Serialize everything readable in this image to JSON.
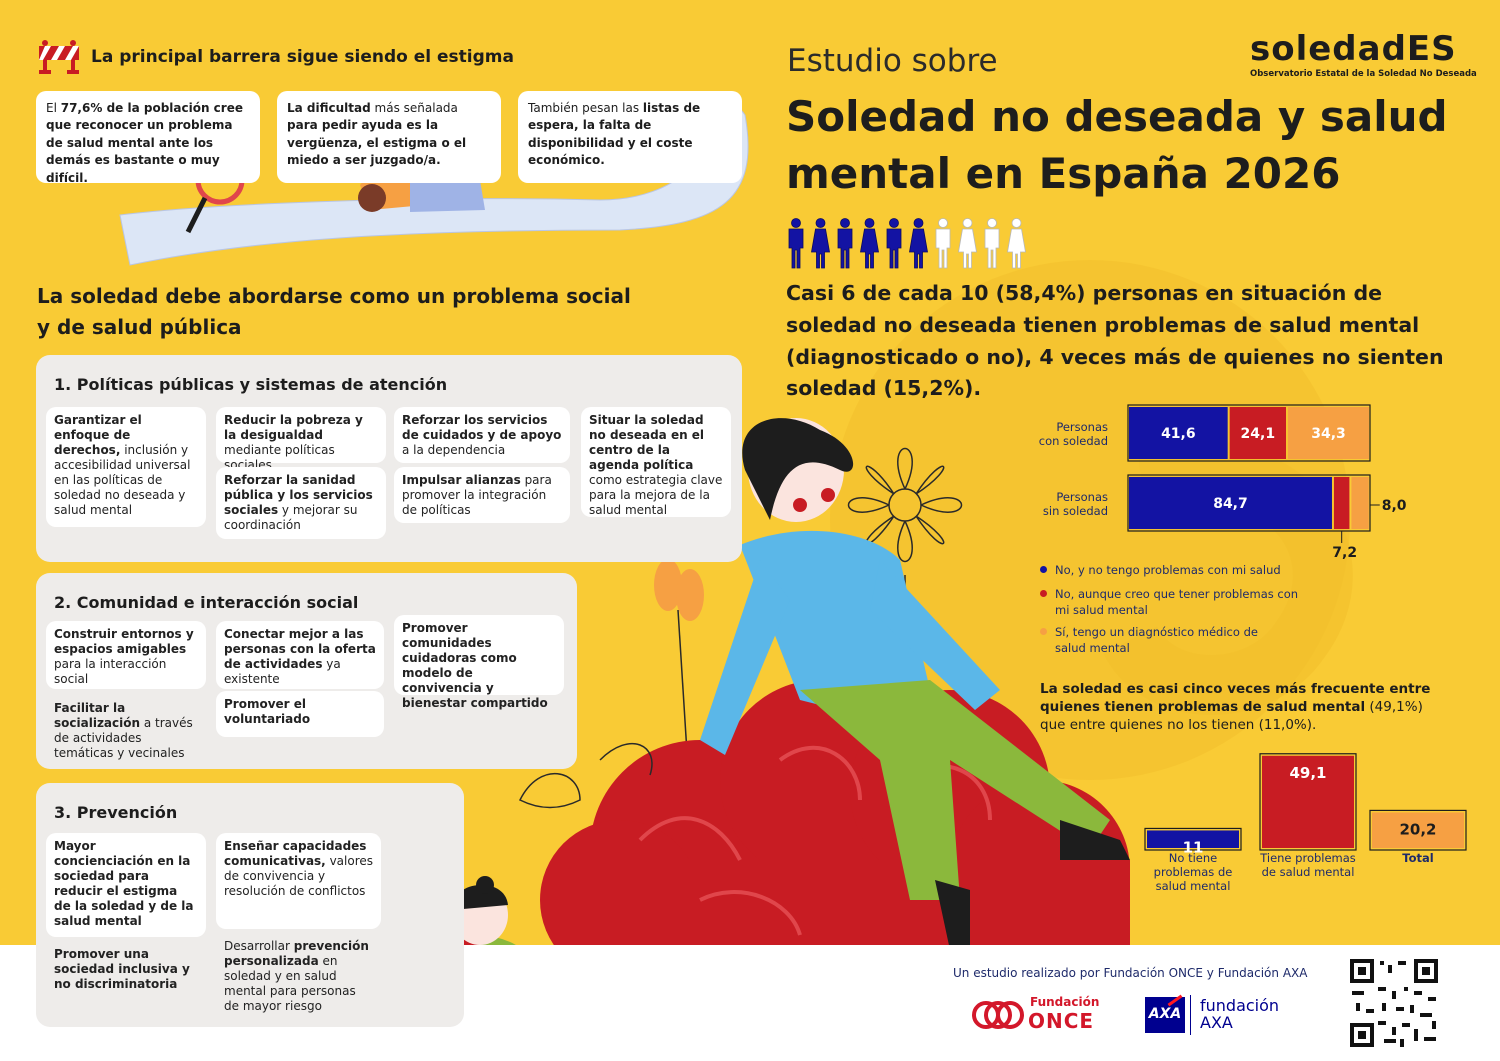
{
  "colors": {
    "background": "#F9CB35",
    "navy": "#1313A3",
    "red": "#C81C23",
    "orange": "#F6A043",
    "panel": "#EEECEA",
    "title": "#1d1d1d"
  },
  "logo": {
    "name": "soledadES",
    "subtitle": "Observatorio Estatal de la Soledad No Deseada"
  },
  "header": {
    "kicker": "Estudio sobre",
    "title_line1": "Soledad no deseada y salud",
    "title_line2": "mental en España 2026"
  },
  "pictogram": {
    "filled": 6,
    "total": 10,
    "icon": "person-icon"
  },
  "headline": {
    "line1": "Casi 6 de cada 10 (58,4%) personas en situación de",
    "line2": "soledad no deseada tienen problemas de salud mental",
    "line3": "(diagnosticado o no), 4 veces más de quienes no sienten",
    "line4": "soledad (15,2%)."
  },
  "stigma": {
    "icon": "barrier-icon",
    "title": "La principal barrera sigue siendo el estigma",
    "card1": {
      "pre": "El ",
      "b1": "77,6%",
      "mid": " de la población cree que reconocer un problema de salud mental ante los demás es bastante o muy difícil.",
      "full": "El 77,6% de la población cree que reconocer un problema de salud mental ante los demás es bastante o muy difícil."
    },
    "card2": {
      "b1": "La dificultad",
      "t1": " más señalada ",
      "b2": "para pedir ayuda es la vergüenza, el estigma o el miedo a ser juzgado/a."
    },
    "card3": {
      "t1": "También pesan las ",
      "b1": "listas de espera, la falta de disponibilidad y el coste económico."
    }
  },
  "social": {
    "line1": "La soledad debe abordarse como un problema social",
    "line2": "y de salud pública"
  },
  "panel1": {
    "title": "1. Políticas públicas y  sistemas de atención",
    "c1": {
      "b": "Garantizar el enfoque de derechos,",
      "t": " inclusión y accesibilidad universal en las políticas de soledad no deseada y salud mental"
    },
    "c2": {
      "b": "Reducir la pobreza y la desigualdad",
      "t": " mediante políticas sociales"
    },
    "c3": {
      "b": "Reforzar la sanidad pública y los servicios sociales",
      "t": " y mejorar su coordinación"
    },
    "c4": {
      "b": "Reforzar los servicios de cuidados y de apoyo",
      "t": " a la dependencia"
    },
    "c5": {
      "b": "Impulsar alianzas",
      "t": " para promover la integración de políticas"
    },
    "c6": {
      "b": "Situar la soledad no deseada en el centro de la agenda política",
      "t": " como estrategia clave para la mejora de la salud mental"
    }
  },
  "panel2": {
    "title": "2. Comunidad e interacción social",
    "c1": {
      "b": "Construir entornos y espacios amigables",
      "t": " para la interacción social"
    },
    "c2": {
      "b": "Facilitar la socialización",
      "t": " a través de actividades temáticas y vecinales"
    },
    "c3": {
      "b": "Conectar mejor a las personas con la oferta de actividades",
      "t": " ya existente"
    },
    "c4": {
      "b": "Promover el voluntariado",
      "t": ""
    },
    "c5": {
      "b": "Promover comunidades cuidadoras como modelo de convivencia y bienestar compartido",
      "t": ""
    }
  },
  "panel3": {
    "title": "3. Prevención",
    "c1": {
      "b": "Mayor concienciación en la sociedad para reducir el estigma de la soledad y de la salud mental",
      "t": ""
    },
    "c2": {
      "b": "Promover una sociedad inclusiva y no discriminatoria",
      "t": ""
    },
    "c3": {
      "b": "Enseñar capacidades comunicativas,",
      "t": " valores de convivencia y resolución de conflictos"
    },
    "c4": {
      "t1": "Desarrollar ",
      "b": "prevención personalizada",
      "t": " en soledad y en salud mental para personas de mayor riesgo"
    }
  },
  "chart_data": [
    {
      "type": "bar",
      "stacked": true,
      "orientation": "horizontal",
      "categories": [
        "Personas con soledad",
        "Personas sin soledad"
      ],
      "category_lines": [
        [
          "Personas",
          "con soledad"
        ],
        [
          "Personas",
          "sin soledad"
        ]
      ],
      "series": [
        {
          "name": "No, y no tengo problemas con mi salud",
          "color": "#1313A3",
          "values": [
            41.6,
            84.7
          ],
          "labels": [
            "41,6",
            "84,7"
          ]
        },
        {
          "name": "No, aunque creo que tener problemas con mi salud mental",
          "color": "#C81C23",
          "values": [
            24.1,
            7.2
          ],
          "labels": [
            "24,1",
            "7,2"
          ]
        },
        {
          "name": "Sí, tengo un diagnóstico médico de salud mental",
          "color": "#F6A043",
          "values": [
            34.3,
            8.0
          ],
          "labels": [
            "34,3",
            "8,0"
          ]
        }
      ],
      "legend": [
        {
          "line1": "No, y no tengo problemas con mi salud",
          "line2": "",
          "color": "#1313A3"
        },
        {
          "line1": "No, aunque creo que tener problemas con",
          "line2": "mi salud mental",
          "color": "#C81C23"
        },
        {
          "line1": "Sí, tengo un diagnóstico médico de",
          "line2": "salud mental",
          "color": "#F6A043"
        }
      ],
      "xlim": [
        0,
        100
      ],
      "legend_position": "bottom-left"
    },
    {
      "type": "bar",
      "intro": {
        "b": "La soledad es casi cinco veces más frecuente entre quienes tienen problemas de salud mental",
        "t1": " (49,1%)",
        "t2": "que entre quienes no los tienen (11,0%)."
      },
      "categories": [
        "No tiene problemas de salud mental",
        "Tiene problemas de salud mental",
        "Total"
      ],
      "category_lines": [
        [
          "No tiene",
          "problemas de",
          "salud mental"
        ],
        [
          "Tiene problemas",
          "de salud mental"
        ],
        [
          "Total"
        ]
      ],
      "values": [
        11,
        49.1,
        20.2
      ],
      "labels": [
        "11",
        "49,1",
        "20,2"
      ],
      "colors": [
        "#1313A3",
        "#C81C23",
        "#F6A043"
      ],
      "ylim": [
        0,
        50
      ]
    }
  ],
  "footer": {
    "credit": "Un estudio realizado por Fundación ONCE y Fundación AXA",
    "once_line1": "Fundación",
    "once_line2": "ONCE",
    "axa_mark": "AXA",
    "axa_line1": "fundación",
    "axa_line2": "AXA",
    "qr": "qr-code"
  }
}
